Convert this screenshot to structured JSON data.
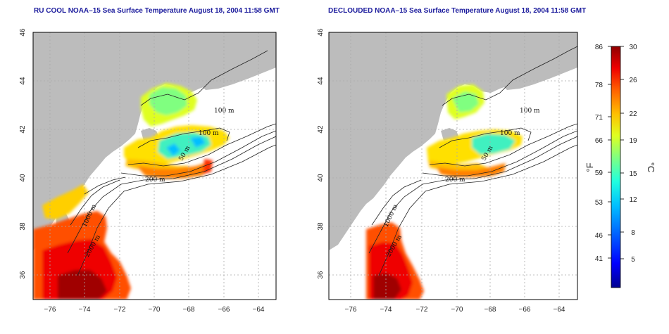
{
  "panels": [
    {
      "id": "left",
      "title": "RU COOL NOAA–15 Sea Surface Temperature August 18, 2004 11:58 GMT",
      "contour_labels": [
        "100 m",
        "100 m",
        "50 m",
        "200 m",
        "1000 m",
        "2000 m"
      ]
    },
    {
      "id": "right",
      "title": "DECLOUDED NOAA–15 Sea Surface Temperature August 18, 2004 11:58 GMT",
      "contour_labels": [
        "100 m",
        "100 m",
        "50 m",
        "200 m",
        "1000 m",
        "2000 m"
      ]
    }
  ],
  "axes": {
    "x_ticks": [
      "−76",
      "−74",
      "−72",
      "−70",
      "−68",
      "−66",
      "−64"
    ],
    "y_ticks": [
      "36",
      "38",
      "40",
      "42",
      "44",
      "46"
    ],
    "xlim": [
      -77,
      -63
    ],
    "ylim": [
      35,
      46
    ]
  },
  "colorbar": {
    "unit_left": "°F",
    "unit_right": "°C",
    "f_ticks": [
      "86",
      "78",
      "71",
      "66",
      "59",
      "53",
      "46",
      "41"
    ],
    "c_ticks": [
      "30",
      "26",
      "22",
      "19",
      "15",
      "12",
      "8",
      "5"
    ],
    "range_c": [
      0,
      30
    ],
    "colors": [
      "#00008f",
      "#0000ff",
      "#0060ff",
      "#00bfff",
      "#20ffdf",
      "#80ff80",
      "#dfff20",
      "#ffbf00",
      "#ff6000",
      "#ef0000",
      "#8f0000"
    ]
  },
  "colors": {
    "land": "#bcbcbc",
    "ocean_missing": "#ffffff",
    "grid": "#aaaaaa",
    "title": "#1a1a9c"
  }
}
